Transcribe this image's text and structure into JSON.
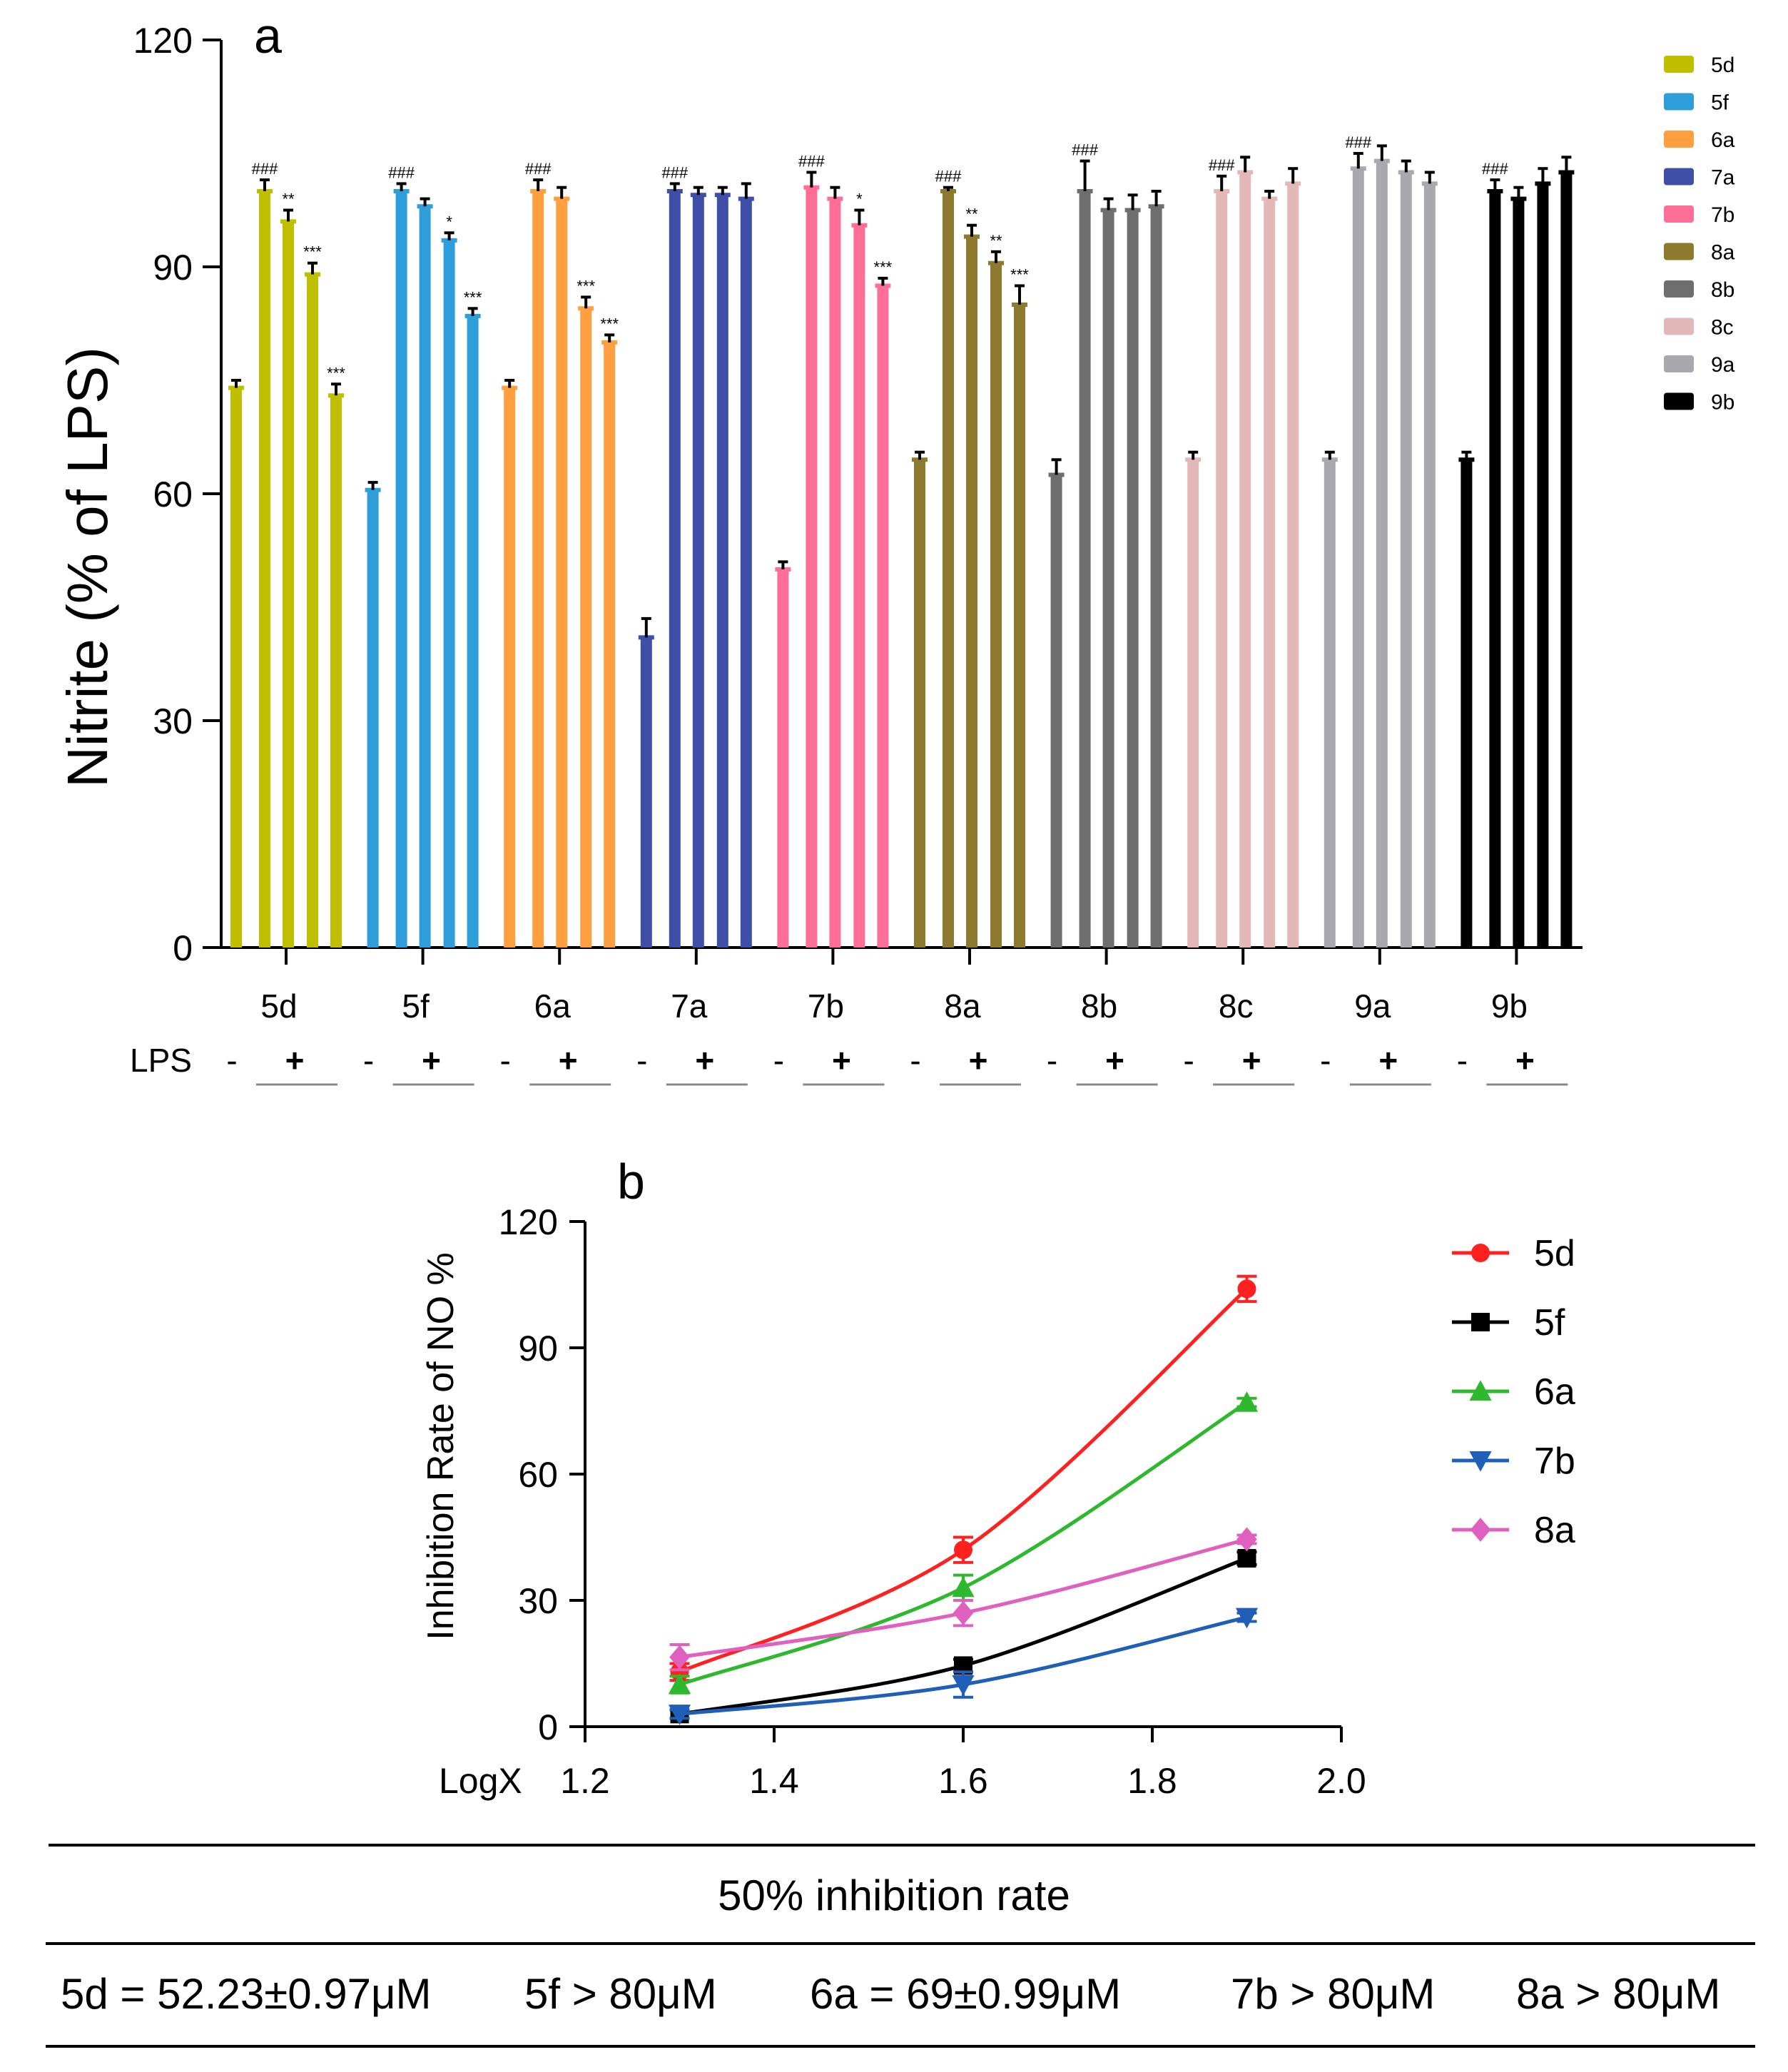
{
  "chart_data": [
    {
      "panel_label": "a",
      "type": "bar",
      "title": "",
      "ylabel": "Nitrite (% of LPS)",
      "xlabel": "",
      "ylim": [
        0,
        120
      ],
      "yticks": [
        "0",
        "30",
        "60",
        "90",
        "120"
      ],
      "lps_label": "LPS",
      "lps_signs": [
        "-",
        "+"
      ],
      "groups": [
        {
          "name": "5d",
          "color": "#BFBF00",
          "values": [
            74,
            100,
            96,
            89,
            73
          ],
          "errors": [
            1,
            1.5,
            1.5,
            1.5,
            1.5
          ],
          "marks": [
            "",
            "###",
            "**",
            "***",
            "***"
          ]
        },
        {
          "name": "5f",
          "color": "#2E9EDB",
          "values": [
            60.5,
            100,
            98,
            93.5,
            83.5
          ],
          "errors": [
            1,
            1,
            1,
            1,
            1
          ],
          "marks": [
            "",
            "###",
            "",
            "*",
            "***"
          ]
        },
        {
          "name": "6a",
          "color": "#FF9F3F",
          "values": [
            74,
            100,
            99,
            84.5,
            80
          ],
          "errors": [
            1,
            1.5,
            1.5,
            1.5,
            1
          ],
          "marks": [
            "",
            "###",
            "",
            "***",
            "***"
          ]
        },
        {
          "name": "7a",
          "color": "#3F4FA8",
          "values": [
            41,
            100,
            99.5,
            99.5,
            99
          ],
          "errors": [
            2.5,
            1,
            1,
            1,
            2
          ],
          "marks": [
            "",
            "###",
            "",
            "",
            ""
          ]
        },
        {
          "name": "7b",
          "color": "#FF6E97",
          "values": [
            50,
            100.5,
            99,
            95.5,
            87.5
          ],
          "errors": [
            1,
            2,
            1.5,
            2,
            1
          ],
          "marks": [
            "",
            "###",
            "",
            "*",
            "***"
          ]
        },
        {
          "name": "8a",
          "color": "#8D7A2E",
          "values": [
            64.5,
            100,
            94,
            90.5,
            85
          ],
          "errors": [
            1,
            0.5,
            1.5,
            1.5,
            2.5
          ],
          "marks": [
            "",
            "###",
            "**",
            "**",
            "***"
          ]
        },
        {
          "name": "8b",
          "color": "#6E6E6E",
          "values": [
            62.5,
            100,
            97.5,
            97.5,
            98
          ],
          "errors": [
            2,
            4,
            1.5,
            2,
            2
          ],
          "marks": [
            "",
            "###",
            "",
            "",
            ""
          ]
        },
        {
          "name": "8c",
          "color": "#E3B8B8",
          "values": [
            64.5,
            100,
            102.5,
            99,
            101
          ],
          "errors": [
            1,
            2,
            2,
            1,
            2
          ],
          "marks": [
            "",
            "###",
            "",
            "",
            ""
          ]
        },
        {
          "name": "9a",
          "color": "#A8A8AE",
          "values": [
            64.5,
            103,
            104,
            102.5,
            101
          ],
          "errors": [
            1,
            2,
            2,
            1.5,
            1.5
          ],
          "marks": [
            "",
            "###",
            "",
            "",
            ""
          ]
        },
        {
          "name": "9b",
          "color": "#000000",
          "values": [
            64.5,
            100,
            99,
            101,
            102.5
          ],
          "errors": [
            1,
            1.5,
            1.5,
            2,
            2
          ],
          "marks": [
            "",
            "###",
            "",
            "",
            ""
          ]
        }
      ],
      "legend": [
        "5d",
        "5f",
        "6a",
        "7a",
        "7b",
        "8a",
        "8b",
        "8c",
        "9a",
        "9b"
      ],
      "legend_position": "top-right"
    },
    {
      "panel_label": "b",
      "type": "line",
      "title": "",
      "ylabel": "Inhibition Rate of NO %",
      "xlabel": "LogX",
      "xlim": [
        1.2,
        2.0
      ],
      "ylim": [
        0,
        120
      ],
      "xticks": [
        "1.2",
        "1.4",
        "1.6",
        "1.8",
        "2.0"
      ],
      "yticks": [
        "0",
        "30",
        "60",
        "90",
        "120"
      ],
      "x": [
        1.3,
        1.6,
        1.9
      ],
      "series": [
        {
          "name": "5d",
          "color": "#FF2020",
          "marker": "circle",
          "values": [
            13,
            42,
            104
          ],
          "errors": [
            2,
            3,
            3
          ]
        },
        {
          "name": "5f",
          "color": "#000000",
          "marker": "square",
          "values": [
            3,
            14.5,
            40
          ],
          "errors": [
            1,
            1.5,
            1.5
          ]
        },
        {
          "name": "6a",
          "color": "#2DB82D",
          "marker": "triangle-up",
          "values": [
            10,
            33,
            77
          ],
          "errors": [
            2,
            3,
            1
          ]
        },
        {
          "name": "7b",
          "color": "#1F5FB8",
          "marker": "triangle-down",
          "values": [
            3,
            10,
            26
          ],
          "errors": [
            1,
            3,
            1
          ]
        },
        {
          "name": "8a",
          "color": "#E060C0",
          "marker": "diamond",
          "values": [
            16.5,
            27,
            44.5
          ],
          "errors": [
            3,
            3,
            1
          ]
        }
      ],
      "legend_position": "top-right"
    }
  ],
  "table": {
    "title": "50% inhibition rate",
    "cells": [
      "5d = 52.23±0.97μM",
      "5f > 80μM",
      "6a = 69±0.99μM",
      "7b > 80μM",
      "8a > 80μM"
    ]
  }
}
